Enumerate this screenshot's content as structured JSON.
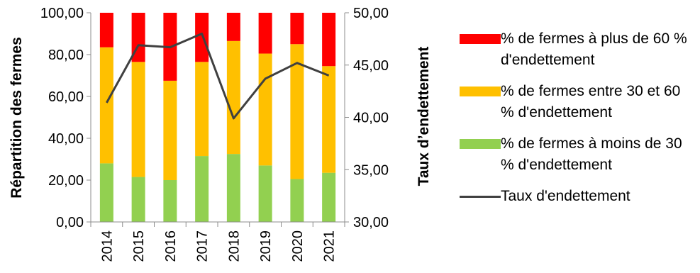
{
  "chart_data": {
    "type": "bar",
    "stacked": true,
    "categories": [
      "2014",
      "2015",
      "2016",
      "2017",
      "2018",
      "2019",
      "2020",
      "2021"
    ],
    "series": [
      {
        "name": "% de fermes à moins de 30 % d'endettement",
        "values": [
          28,
          21.5,
          20,
          31.5,
          32.5,
          27,
          20.5,
          23.5
        ],
        "color": "#92D050",
        "axis": "left"
      },
      {
        "name": "% de fermes entre 30 et 60 % d'endettement",
        "values": [
          55.5,
          55,
          47.5,
          45,
          54,
          53.5,
          64.5,
          51
        ],
        "color": "#FFC000",
        "axis": "left"
      },
      {
        "name": "% de fermes à plus de 60 % d'endettement",
        "values": [
          16.5,
          23.5,
          32.5,
          23.5,
          13.5,
          19.5,
          15,
          25.5
        ],
        "color": "#FF0000",
        "axis": "left"
      },
      {
        "name": "Taux d'endettement",
        "type": "line",
        "values": [
          41.4,
          46.9,
          46.7,
          48.0,
          39.9,
          43.7,
          45.2,
          44.0
        ],
        "color": "#404040",
        "axis": "right"
      }
    ],
    "ylabel": "Répartition des fermes",
    "y2label": "Taux d’endettement",
    "ylim": [
      0,
      100
    ],
    "y2lim": [
      30,
      50
    ],
    "yticks": [
      "0,00",
      "20,00",
      "40,00",
      "60,00",
      "80,00",
      "100,00"
    ],
    "y2ticks": [
      "30,00",
      "35,00",
      "40,00",
      "45,00",
      "50,00"
    ],
    "legend": "right",
    "grid": false
  },
  "legend": {
    "items": [
      {
        "label": "% de fermes à plus de 60 % d'endettement",
        "color": "#FF0000",
        "kind": "swatch"
      },
      {
        "label": "% de fermes entre 30 et 60 % d'endettement",
        "color": "#FFC000",
        "kind": "swatch"
      },
      {
        "label": "% de fermes à moins de 30 % d'endettement",
        "color": "#92D050",
        "kind": "swatch"
      },
      {
        "label": "Taux d'endettement",
        "color": "#404040",
        "kind": "line"
      }
    ]
  }
}
